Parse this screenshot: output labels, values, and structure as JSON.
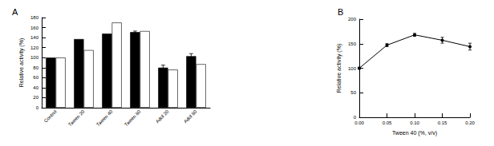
{
  "chart_data": [
    {
      "type": "bar",
      "title": "A",
      "categories": [
        "Control",
        "Tween 20",
        "Tween 40",
        "Tween 80",
        "Adol 20",
        "Adol 80"
      ],
      "series": [
        {
          "color": "#000000",
          "values": [
            100,
            137,
            148,
            151,
            80,
            103
          ],
          "errors": [
            0,
            0,
            0,
            2,
            5,
            5
          ]
        },
        {
          "color": "#ffffff",
          "values": [
            100,
            115,
            170,
            153,
            76,
            87
          ],
          "errors": [
            0,
            0,
            0,
            0,
            0,
            0
          ]
        }
      ],
      "y_label": "Relative activity (%)",
      "ylim": [
        0,
        180
      ],
      "yticks": [
        0,
        20,
        40,
        60,
        80,
        100,
        120,
        140,
        160,
        180
      ]
    },
    {
      "type": "line",
      "title": "B",
      "x": [
        0,
        0.05,
        0.1,
        0.15,
        0.2
      ],
      "values": [
        100,
        147,
        168,
        157,
        144
      ],
      "errors": [
        2,
        3,
        3,
        6,
        7
      ],
      "color": "#000000",
      "marker": "circle",
      "x_label": "Tween 40 (%, v/v)",
      "y_label": "Relative activity (%)",
      "xlim": [
        0,
        0.2
      ],
      "xticks": [
        {
          "value": 0,
          "label": "0.00"
        },
        {
          "value": 0.05,
          "label": "0.05"
        },
        {
          "value": 0.1,
          "label": "0.10"
        },
        {
          "value": 0.15,
          "label": "0.15"
        },
        {
          "value": 0.2,
          "label": "0.20"
        }
      ],
      "ylim": [
        0,
        200
      ],
      "yticks": [
        0,
        50,
        100,
        150,
        200
      ]
    }
  ]
}
